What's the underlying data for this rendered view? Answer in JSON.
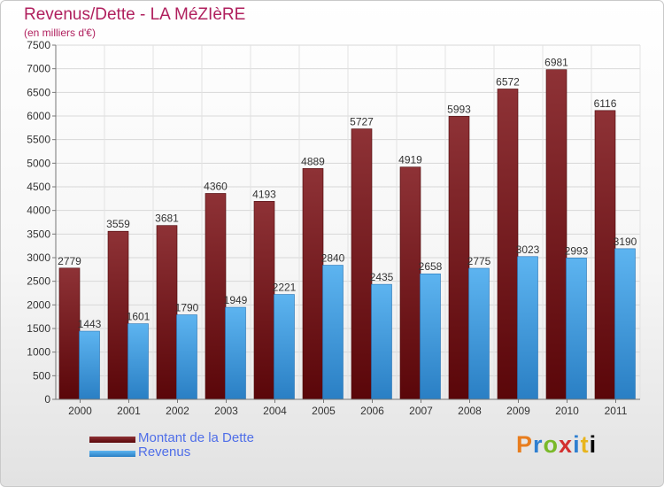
{
  "title": "Revenus/Dette - LA MéZIèRE",
  "subtitle": "(en milliers d'€)",
  "logo_text": "Proxiti",
  "colors": {
    "debt": "#7a1e22",
    "revenue": "#4aa3e4",
    "title": "#b0205e",
    "legend_text": "#4f6ee8"
  },
  "legend": {
    "debt_label": "Montant de la Dette",
    "revenue_label": "Revenus"
  },
  "chart_data": {
    "type": "bar",
    "title": "Revenus/Dette - LA MéZIèRE",
    "subtitle": "(en milliers d'€)",
    "xlabel": "",
    "ylabel": "",
    "categories": [
      "2000",
      "2001",
      "2002",
      "2003",
      "2004",
      "2005",
      "2006",
      "2007",
      "2008",
      "2009",
      "2010",
      "2011"
    ],
    "series": [
      {
        "name": "Montant de la Dette",
        "values": [
          2779,
          3559,
          3681,
          4360,
          4193,
          4889,
          5727,
          4919,
          5993,
          6572,
          6981,
          6116
        ]
      },
      {
        "name": "Revenus",
        "values": [
          1443,
          1601,
          1790,
          1949,
          2221,
          2840,
          2435,
          2658,
          2775,
          3023,
          2993,
          3190
        ]
      }
    ],
    "ylim": [
      0,
      7500
    ],
    "yticks": [
      0,
      500,
      1000,
      1500,
      2000,
      2500,
      3000,
      3500,
      4000,
      4500,
      5000,
      5500,
      6000,
      6500,
      7000,
      7500
    ],
    "grid": true,
    "legend_position": "bottom-left"
  }
}
